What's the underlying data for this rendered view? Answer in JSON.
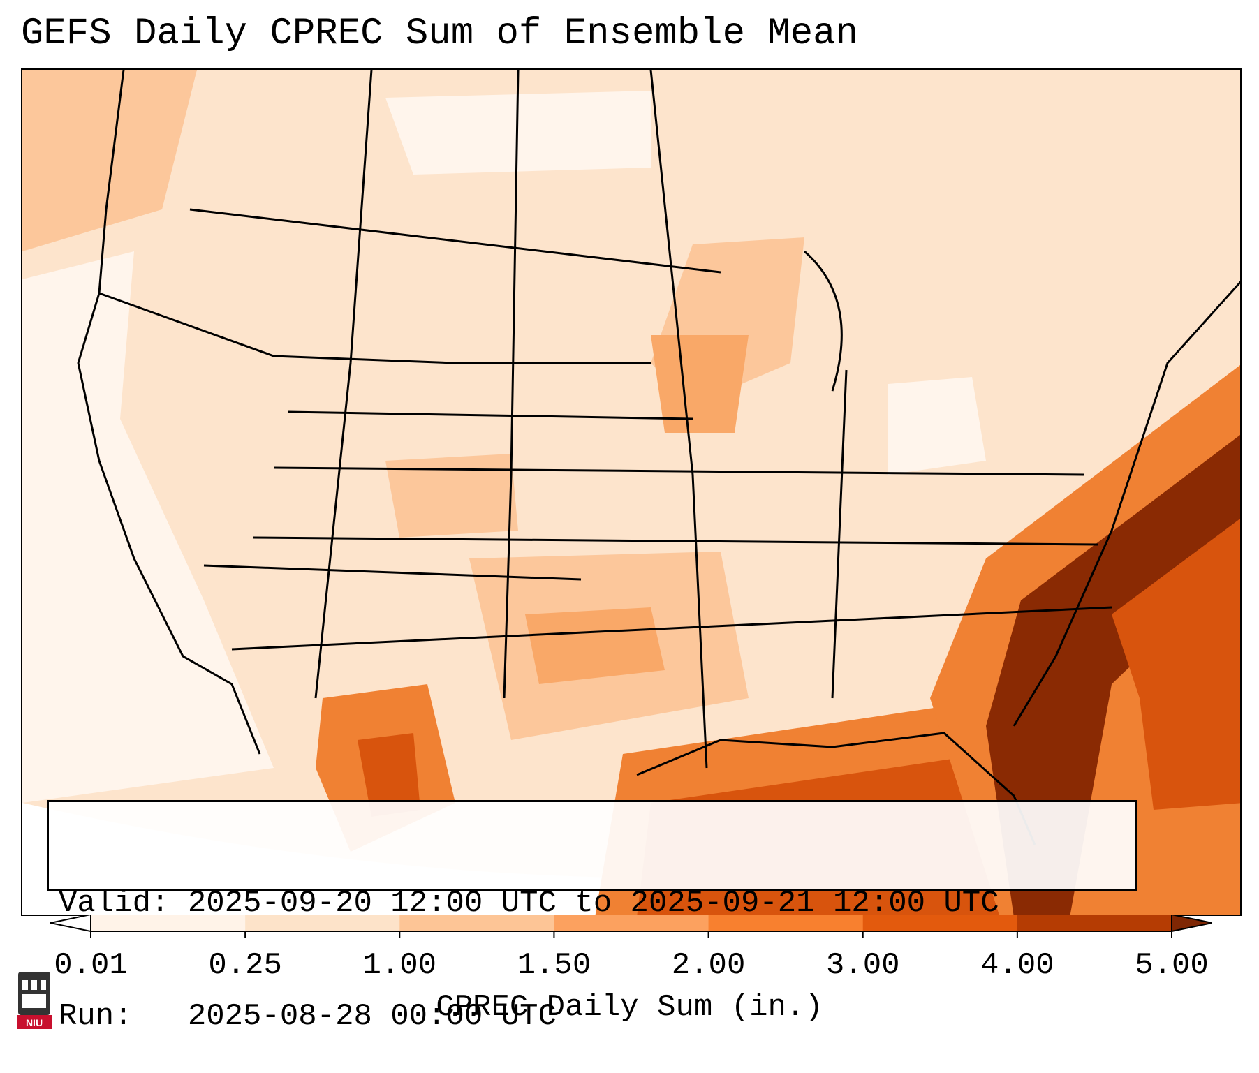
{
  "title": "GEFS Daily CPREC Sum of Ensemble Mean",
  "info": {
    "valid_label": "Valid: 2025-09-20 12:00 UTC to 2025-09-21 12:00 UTC",
    "run_label": "Run:   2025-08-28 00:00 UTC"
  },
  "colorbar": {
    "ticks": [
      "0.01",
      "0.25",
      "1.00",
      "1.50",
      "2.00",
      "3.00",
      "4.00",
      "5.00"
    ],
    "colors": [
      "#fff3e8",
      "#fde3c9",
      "#fdc596",
      "#fca15f",
      "#f8802f",
      "#e35a0d",
      "#b53c03",
      "#7f2704"
    ],
    "under_color": "#ffffff",
    "over_color": "#7f2704",
    "title": "CPREC Daily Sum (in.)"
  },
  "logo": {
    "text": "NIU",
    "color": "#c8102e"
  },
  "map": {
    "colors": {
      "very_light": "#fff5ec",
      "light": "#fde4cc",
      "medium_light": "#fcc79b",
      "medium": "#f9a868",
      "orange": "#f08133",
      "dark_orange": "#d8540d",
      "dark": "#8a2a03"
    }
  }
}
